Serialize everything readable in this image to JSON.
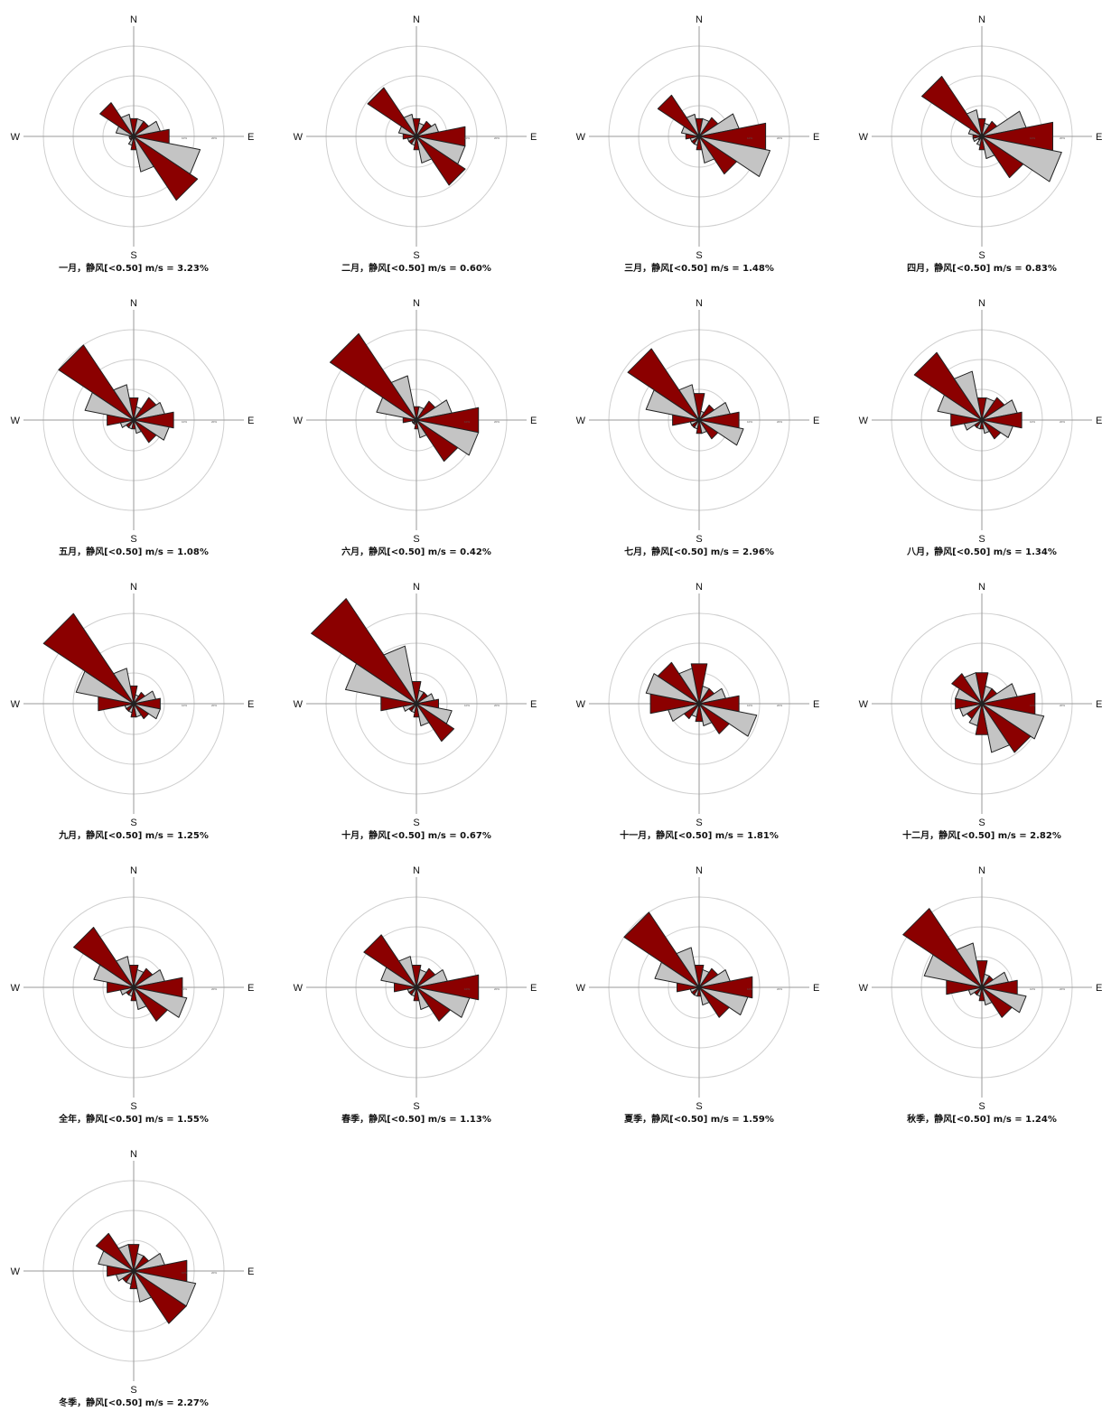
{
  "colors": {
    "primary_petal": "#8b0000",
    "secondary_petal": "#c4c4c4",
    "outline": "#222222",
    "ring": "#cfcfcf",
    "axis": "#9a9a9a"
  },
  "chart_data": {
    "type": "wind-rose",
    "directions": [
      "N",
      "NNE",
      "NE",
      "ENE",
      "E",
      "ESE",
      "SE",
      "SSE",
      "S",
      "SSW",
      "SW",
      "WSW",
      "W",
      "WNW",
      "NW",
      "NNW"
    ],
    "cardinal_labels": {
      "n": "N",
      "e": "E",
      "s": "S",
      "w": "W"
    },
    "ring_labels": [
      "10%",
      "20%"
    ],
    "radial_max": 20,
    "panels": [
      {
        "caption": "一月，静风[<0.50] m/s = 3.23%",
        "values": [
          4,
          4,
          4,
          6,
          8,
          15,
          17,
          8,
          3,
          2,
          1,
          1,
          1,
          4,
          9,
          5
        ]
      },
      {
        "caption": "二月，静风[<0.50] m/s = 0.60%",
        "values": [
          4,
          3,
          4,
          5,
          11,
          11,
          13,
          6,
          3,
          2,
          2,
          2,
          3,
          4,
          13,
          5
        ]
      },
      {
        "caption": "三月，静风[<0.50] m/s = 1.48%",
        "values": [
          4,
          4,
          5,
          9,
          15,
          16,
          10,
          6,
          3,
          2,
          2,
          2,
          3,
          4,
          11,
          5
        ]
      },
      {
        "caption": "四月，静风[<0.50] m/s = 0.83%",
        "values": [
          4,
          3,
          4,
          10,
          16,
          18,
          11,
          5,
          3,
          2,
          1,
          2,
          2,
          3,
          16,
          6
        ]
      },
      {
        "caption": "五月，静风[<0.50] m/s = 1.08%",
        "values": [
          5,
          3,
          6,
          7,
          9,
          8,
          6,
          3,
          2,
          2,
          2,
          3,
          6,
          11,
          20,
          8
        ]
      },
      {
        "caption": "六月，静风[<0.50] m/s = 0.42%",
        "values": [
          3,
          3,
          5,
          8,
          14,
          14,
          11,
          4,
          2,
          1,
          1,
          1,
          3,
          9,
          23,
          10
        ]
      },
      {
        "caption": "七月，静风[<0.50] m/s = 2.96%",
        "values": [
          6,
          2,
          4,
          7,
          9,
          10,
          5,
          3,
          3,
          2,
          2,
          2,
          6,
          12,
          19,
          8
        ]
      },
      {
        "caption": "八月，静风[<0.50] m/s = 1.34%",
        "values": [
          5,
          5,
          6,
          8,
          9,
          7,
          5,
          3,
          2,
          2,
          2,
          4,
          7,
          10,
          18,
          11
        ]
      },
      {
        "caption": "九月，静风[<0.50] m/s = 1.25%",
        "values": [
          4,
          2,
          3,
          5,
          6,
          6,
          4,
          3,
          3,
          2,
          2,
          2,
          8,
          13,
          24,
          8
        ]
      },
      {
        "caption": "十月，静风[<0.50] m/s = 0.67%",
        "values": [
          5,
          3,
          3,
          4,
          5,
          8,
          10,
          5,
          3,
          2,
          2,
          3,
          8,
          16,
          28,
          13
        ]
      },
      {
        "caption": "十一月，静风[<0.50] m/s = 1.81%",
        "values": [
          9,
          4,
          4,
          6,
          9,
          13,
          8,
          5,
          4,
          3,
          4,
          7,
          11,
          12,
          11,
          8
        ]
      },
      {
        "caption": "十二月，静风[<0.50] m/s = 2.82%",
        "values": [
          7,
          4,
          4,
          8,
          12,
          14,
          13,
          11,
          7,
          5,
          4,
          5,
          6,
          6,
          8,
          7
        ]
      },
      {
        "caption": "全年，静风[<0.50] m/s = 1.55%",
        "values": [
          5,
          4,
          5,
          7,
          11,
          12,
          9,
          5,
          3,
          2,
          2,
          3,
          6,
          9,
          16,
          7
        ]
      },
      {
        "caption": "春季，静风[<0.50] m/s = 1.13%",
        "values": [
          5,
          4,
          5,
          7,
          14,
          12,
          9,
          5,
          3,
          2,
          2,
          2,
          5,
          8,
          14,
          7
        ]
      },
      {
        "caption": "夏季，静风[<0.50] m/s = 1.59%",
        "values": [
          5,
          4,
          5,
          7,
          12,
          11,
          8,
          4,
          2,
          2,
          2,
          2,
          5,
          10,
          20,
          9
        ]
      },
      {
        "caption": "秋季，静风[<0.50] m/s = 1.24%",
        "values": [
          6,
          3,
          3,
          6,
          8,
          10,
          8,
          4,
          3,
          2,
          2,
          3,
          8,
          13,
          21,
          10
        ]
      },
      {
        "caption": "冬季，静风[<0.50] m/s = 2.27%",
        "values": [
          6,
          4,
          4,
          7,
          12,
          14,
          14,
          7,
          4,
          3,
          3,
          4,
          6,
          8,
          10,
          6
        ]
      }
    ]
  }
}
